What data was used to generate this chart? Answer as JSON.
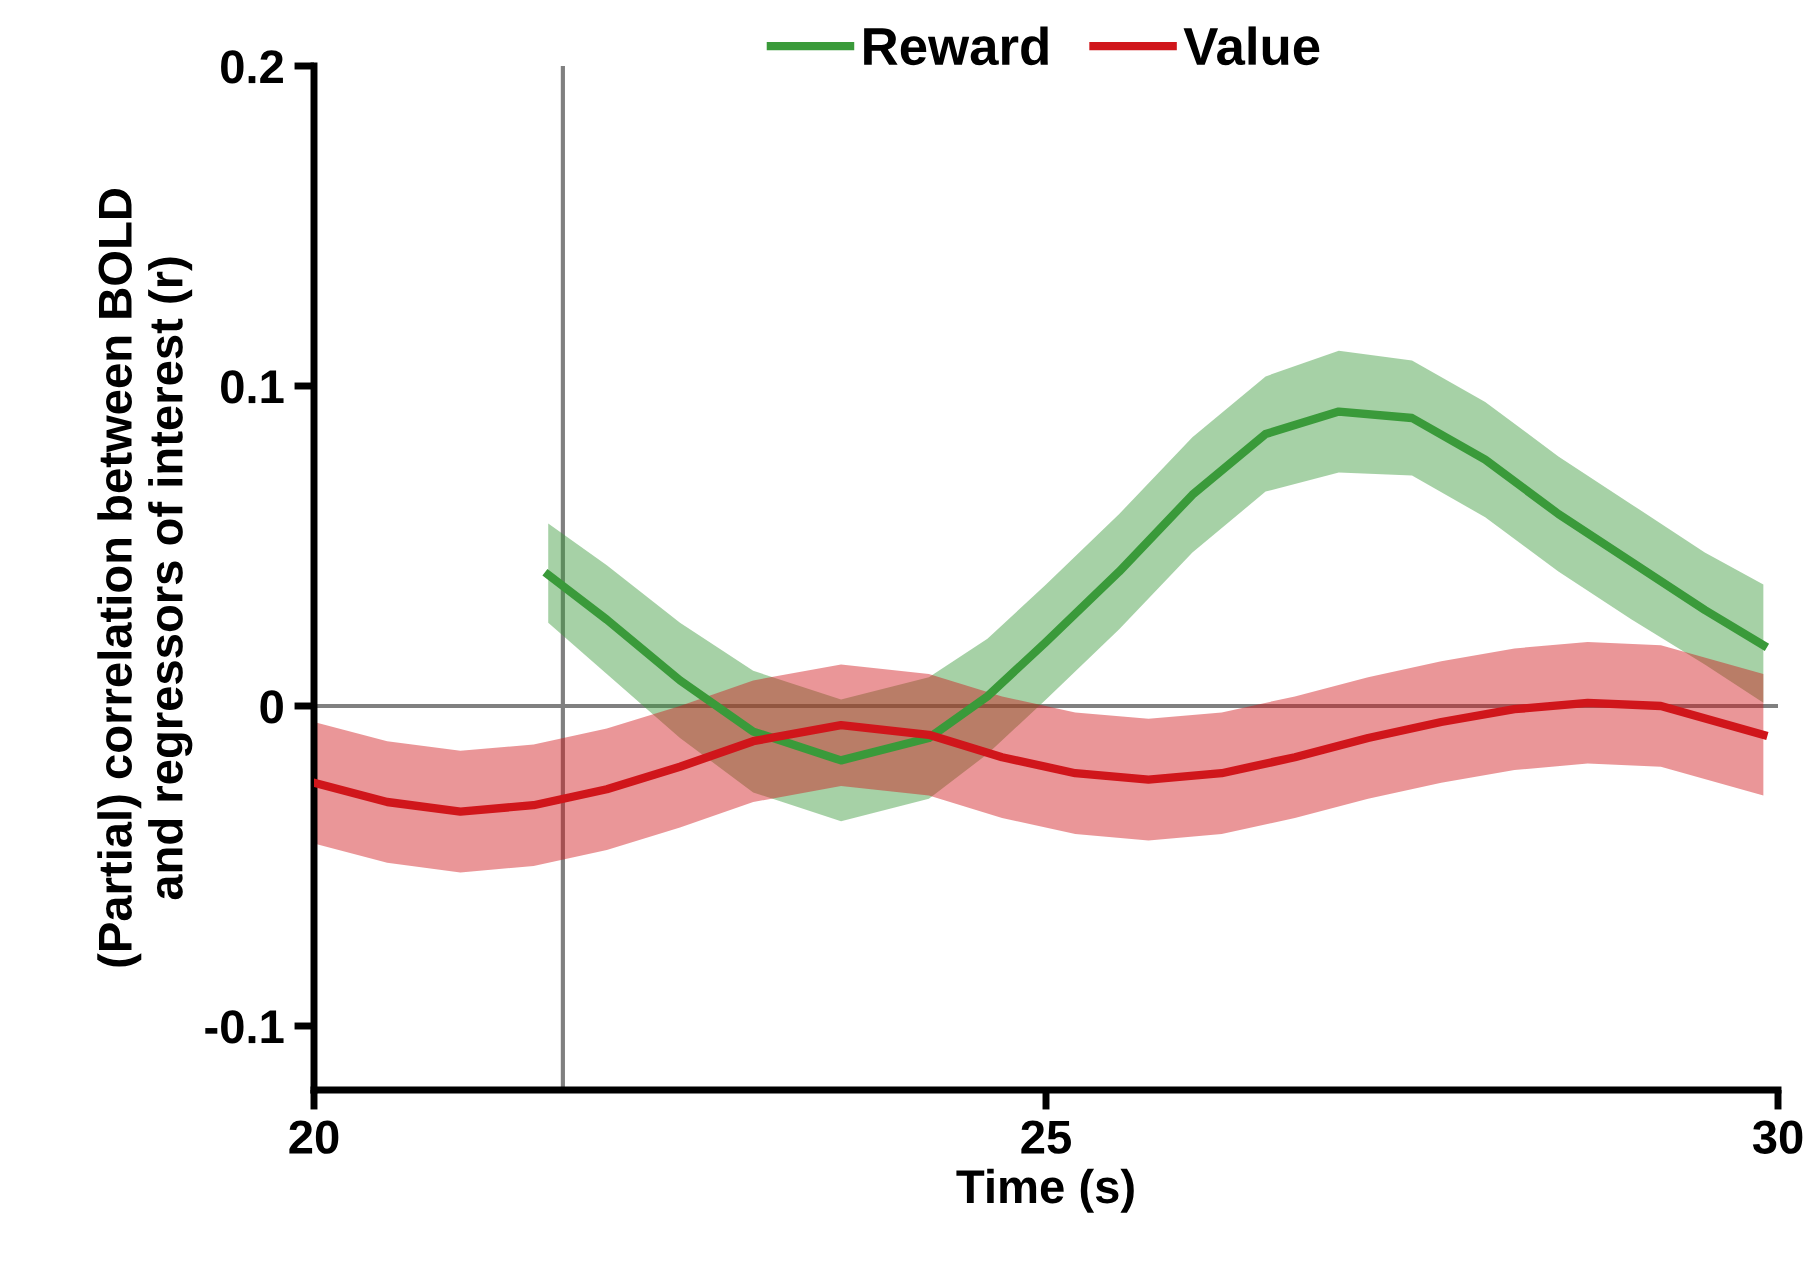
{
  "chart_data": {
    "type": "line",
    "xlabel": "Time (s)",
    "ylabel": "(Partial) correlation between BOLD\nand regressors of interest (r)",
    "xlim": [
      20,
      30
    ],
    "xticks": [
      20,
      25,
      30
    ],
    "ylim": [
      -0.12,
      0.2
    ],
    "yticks": [
      {
        "value": -0.1,
        "label": "-0.1"
      },
      0,
      0.1,
      0.2
    ],
    "grid": false,
    "legend": "top",
    "marker": "none",
    "line_style": "solid",
    "ref_lines": [
      {
        "axis": "y",
        "value": 0,
        "color": "#808080"
      },
      {
        "axis": "x",
        "value": 21.7,
        "color": "#808080"
      }
    ],
    "series": [
      {
        "name": "Reward",
        "color": "#3a9a3a",
        "x": [
          21.6,
          22.0,
          22.5,
          23.0,
          23.6,
          24.2,
          24.6,
          25.0,
          25.5,
          26.0,
          26.5,
          27.0,
          27.5,
          28.0,
          28.5,
          29.0,
          29.5,
          29.9
        ],
        "values": [
          0.041,
          0.027,
          0.008,
          -0.008,
          -0.017,
          -0.01,
          0.003,
          0.02,
          0.042,
          0.066,
          0.085,
          0.092,
          0.09,
          0.077,
          0.06,
          0.045,
          0.03,
          0.019
        ],
        "lower": [
          0.026,
          0.01,
          -0.01,
          -0.027,
          -0.036,
          -0.029,
          -0.015,
          0.002,
          0.024,
          0.048,
          0.067,
          0.073,
          0.072,
          0.059,
          0.042,
          0.027,
          0.013,
          0.001
        ],
        "upper": [
          0.057,
          0.044,
          0.026,
          0.011,
          0.002,
          0.009,
          0.021,
          0.038,
          0.06,
          0.084,
          0.103,
          0.111,
          0.108,
          0.095,
          0.078,
          0.063,
          0.048,
          0.038
        ]
      },
      {
        "name": "Value",
        "color": "#d0161b",
        "x": [
          20.0,
          20.5,
          21.0,
          21.5,
          22.0,
          22.5,
          23.0,
          23.6,
          24.2,
          24.7,
          25.2,
          25.7,
          26.2,
          26.7,
          27.2,
          27.7,
          28.2,
          28.7,
          29.2,
          29.9
        ],
        "values": [
          -0.024,
          -0.03,
          -0.033,
          -0.031,
          -0.026,
          -0.019,
          -0.011,
          -0.006,
          -0.009,
          -0.016,
          -0.021,
          -0.023,
          -0.021,
          -0.016,
          -0.01,
          -0.005,
          -0.001,
          0.001,
          0.0,
          -0.009
        ],
        "lower": [
          -0.043,
          -0.049,
          -0.052,
          -0.05,
          -0.045,
          -0.038,
          -0.03,
          -0.025,
          -0.028,
          -0.035,
          -0.04,
          -0.042,
          -0.04,
          -0.035,
          -0.029,
          -0.024,
          -0.02,
          -0.018,
          -0.019,
          -0.028
        ],
        "upper": [
          -0.005,
          -0.011,
          -0.014,
          -0.012,
          -0.007,
          0.0,
          0.008,
          0.013,
          0.01,
          0.003,
          -0.002,
          -0.004,
          -0.002,
          0.003,
          0.009,
          0.014,
          0.018,
          0.02,
          0.019,
          0.01
        ]
      }
    ]
  }
}
